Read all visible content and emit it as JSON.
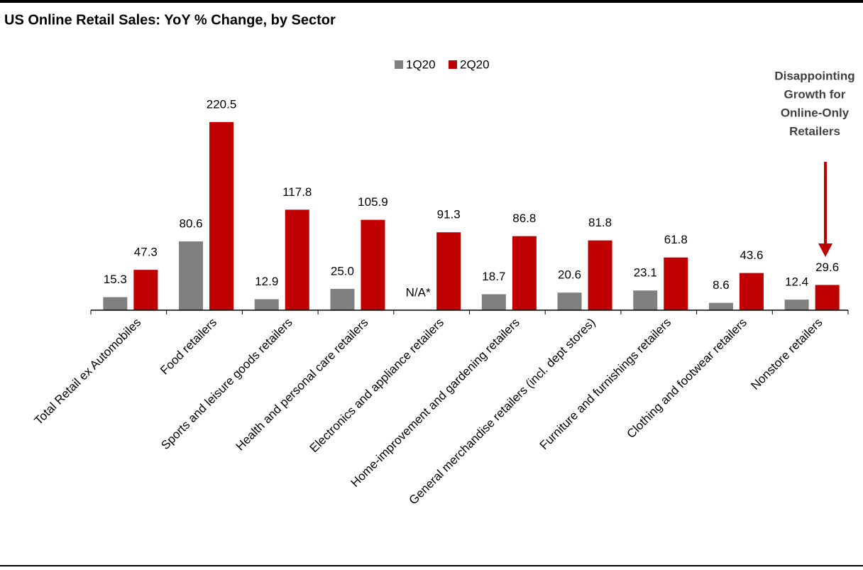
{
  "chart_data": {
    "type": "bar",
    "title": "US Online Retail Sales: YoY % Change, by Sector",
    "categories": [
      "Total Retail ex Automobiles",
      "Food retailers",
      "Sports and leisure goods retailers",
      "Health and personal care retailers",
      "Electronics and appliance retailers",
      "Home-improvement and gardening retailers",
      "General merchandise retailers (incl. dept stores)",
      "Furniture and furnishings retailers",
      "Clothing and footwear retailers",
      "Nonstore retailers"
    ],
    "series": [
      {
        "name": "1Q20",
        "color": "#808080",
        "values": [
          15.3,
          80.6,
          12.9,
          25.0,
          null,
          18.7,
          20.6,
          23.1,
          8.6,
          12.4
        ],
        "value_labels": [
          "15.3",
          "80.6",
          "12.9",
          "25.0",
          "N/A*",
          "18.7",
          "20.6",
          "23.1",
          "8.6",
          "12.4"
        ]
      },
      {
        "name": "2Q20",
        "color": "#c00000",
        "values": [
          47.3,
          220.5,
          117.8,
          105.9,
          91.3,
          86.8,
          81.8,
          61.8,
          43.6,
          29.6
        ],
        "value_labels": [
          "47.3",
          "220.5",
          "117.8",
          "105.9",
          "91.3",
          "86.8",
          "81.8",
          "61.8",
          "43.6",
          "29.6"
        ]
      }
    ],
    "ylim": [
      0,
      250
    ],
    "annotation": [
      "Disappointing",
      "Growth for",
      "Online-Only",
      "Retailers"
    ]
  }
}
